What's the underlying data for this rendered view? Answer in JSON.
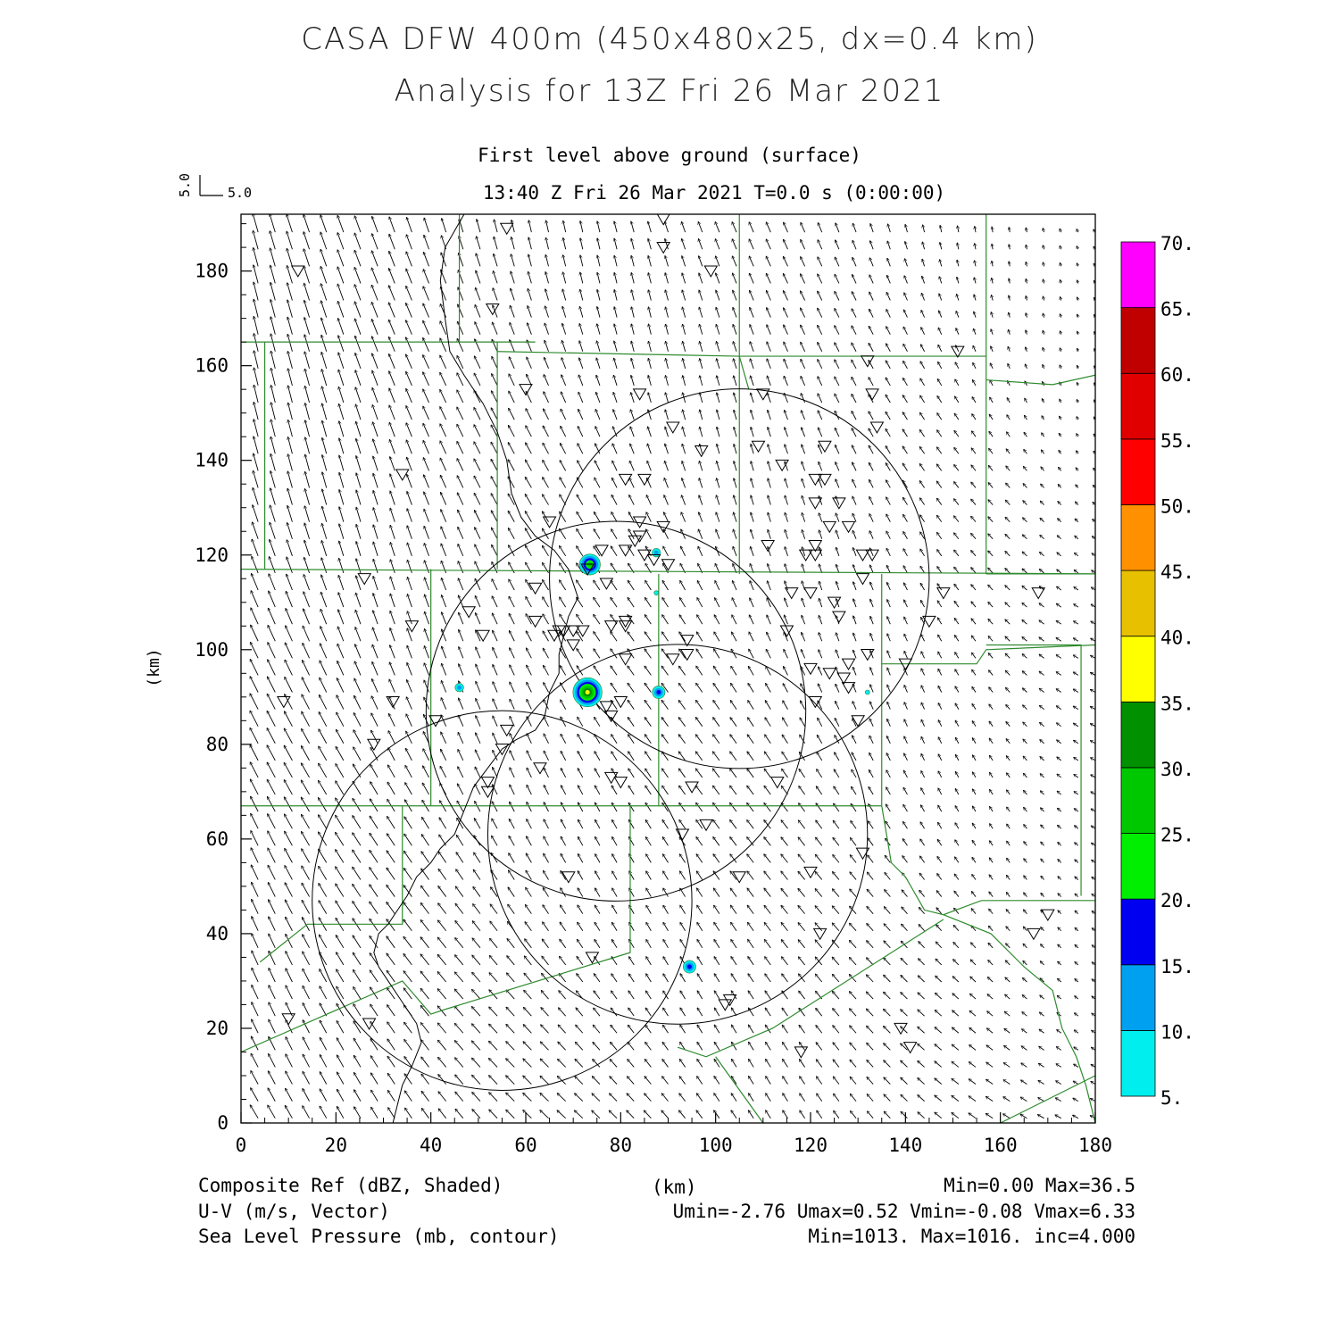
{
  "header": {
    "title_line1": "CASA DFW 400m (450x480x25, dx=0.4 km)",
    "title_line2": "Analysis for 13Z Fri 26 Mar 2021",
    "level": "First level above ground (surface)",
    "time": "13:40 Z Fri 26 Mar 2021    T=0.0 s (0:00:00)",
    "vector_key_u": "5.0",
    "vector_key_v": "5.0"
  },
  "footer": {
    "field1_label": "Composite Ref (dBZ, Shaded)",
    "field1_stats": "Min=0.00 Max=36.5",
    "field2_label": "U-V (m/s, Vector)",
    "field2_stats": "Umin=-2.76 Umax=0.52 Vmin=-0.08 Vmax=6.33",
    "field3_label": "Sea Level Pressure (mb, contour)",
    "field3_stats": "Min=1013. Max=1016. inc=4.000",
    "xunit": "(km)"
  },
  "colors": {
    "county_lines": "#2e8b2e",
    "contour_lines": "#000000"
  },
  "chart_data": {
    "type": "contour-vector-map",
    "xlabel": "(km)",
    "ylabel": "(km)",
    "xlim": [
      0,
      180
    ],
    "ylim": [
      0,
      192
    ],
    "xticks": [
      0,
      20,
      40,
      60,
      80,
      100,
      120,
      140,
      160,
      180
    ],
    "yticks": [
      0,
      20,
      40,
      60,
      80,
      100,
      120,
      140,
      160,
      180
    ],
    "colorbar": {
      "labels": [
        "5.",
        "10.",
        "15.",
        "20.",
        "25.",
        "30.",
        "35.",
        "40.",
        "45.",
        "50.",
        "55.",
        "60.",
        "65.",
        "70."
      ],
      "colors": [
        "#00eeee",
        "#00a0f0",
        "#0000f0",
        "#00ee00",
        "#00c800",
        "#009000",
        "#ffff00",
        "#e7c000",
        "#ff9000",
        "#ff0000",
        "#e00000",
        "#c00000",
        "#ff00ff"
      ]
    },
    "radar_rings_km": [
      {
        "cx": 105,
        "cy": 115,
        "r": 40
      },
      {
        "cx": 79,
        "cy": 87,
        "r": 40
      },
      {
        "cx": 92,
        "cy": 61,
        "r": 40
      },
      {
        "cx": 55,
        "cy": 47,
        "r": 40
      }
    ],
    "echoes": [
      {
        "x": 73.5,
        "y": 118,
        "dbz": 28
      },
      {
        "x": 87.5,
        "y": 120.5,
        "dbz": 14
      },
      {
        "x": 87.5,
        "y": 112,
        "dbz": 8
      },
      {
        "x": 46,
        "y": 92,
        "dbz": 13
      },
      {
        "x": 73,
        "y": 91,
        "dbz": 36.5
      },
      {
        "x": 88,
        "y": 91,
        "dbz": 17
      },
      {
        "x": 132,
        "y": 91,
        "dbz": 7
      },
      {
        "x": 94.5,
        "y": 33,
        "dbz": 17
      }
    ],
    "stations": [
      [
        56,
        189
      ],
      [
        89,
        191
      ],
      [
        89,
        185
      ],
      [
        99,
        180
      ],
      [
        12,
        180
      ],
      [
        53,
        172
      ],
      [
        151,
        163
      ],
      [
        132,
        161
      ],
      [
        60,
        155
      ],
      [
        84,
        154
      ],
      [
        110,
        154
      ],
      [
        133,
        154
      ],
      [
        91,
        147
      ],
      [
        134,
        147
      ],
      [
        97,
        142
      ],
      [
        109,
        143
      ],
      [
        123,
        143
      ],
      [
        114,
        139
      ],
      [
        34,
        137
      ],
      [
        81,
        136
      ],
      [
        85,
        136
      ],
      [
        121,
        136
      ],
      [
        123,
        136
      ],
      [
        121,
        131
      ],
      [
        126,
        131
      ],
      [
        65,
        127
      ],
      [
        84,
        127
      ],
      [
        89,
        126
      ],
      [
        84,
        124
      ],
      [
        83,
        123
      ],
      [
        124,
        126
      ],
      [
        128,
        126
      ],
      [
        121,
        122
      ],
      [
        111,
        122
      ],
      [
        76,
        121
      ],
      [
        81,
        121
      ],
      [
        85,
        120
      ],
      [
        87,
        119
      ],
      [
        90,
        118
      ],
      [
        119,
        120
      ],
      [
        121,
        120
      ],
      [
        131,
        120
      ],
      [
        133,
        120
      ],
      [
        73,
        117
      ],
      [
        26,
        115
      ],
      [
        131,
        115
      ],
      [
        77,
        114
      ],
      [
        62,
        113
      ],
      [
        116,
        112
      ],
      [
        120,
        112
      ],
      [
        125,
        110
      ],
      [
        148,
        112
      ],
      [
        168,
        112
      ],
      [
        48,
        108
      ],
      [
        126,
        107
      ],
      [
        36,
        105
      ],
      [
        62,
        106
      ],
      [
        67,
        104
      ],
      [
        68,
        104
      ],
      [
        70,
        104
      ],
      [
        66,
        103
      ],
      [
        72,
        104
      ],
      [
        78,
        105
      ],
      [
        81,
        105
      ],
      [
        81,
        106
      ],
      [
        115,
        104
      ],
      [
        145,
        106
      ],
      [
        51,
        103
      ],
      [
        94,
        102
      ],
      [
        70,
        101
      ],
      [
        94,
        99
      ],
      [
        91,
        98
      ],
      [
        132,
        99
      ],
      [
        81,
        98
      ],
      [
        140,
        97
      ],
      [
        120,
        96
      ],
      [
        124,
        95
      ],
      [
        128,
        97
      ],
      [
        128,
        92
      ],
      [
        127,
        94
      ],
      [
        9,
        89
      ],
      [
        32,
        89
      ],
      [
        80,
        89
      ],
      [
        77,
        88
      ],
      [
        78,
        86
      ],
      [
        121,
        89
      ],
      [
        41,
        85
      ],
      [
        56,
        83
      ],
      [
        130,
        85
      ],
      [
        28,
        80
      ],
      [
        55,
        79
      ],
      [
        63,
        75
      ],
      [
        78,
        73
      ],
      [
        80,
        72
      ],
      [
        52,
        72
      ],
      [
        52,
        70
      ],
      [
        95,
        71
      ],
      [
        113,
        72
      ],
      [
        98,
        63
      ],
      [
        93,
        61
      ],
      [
        131,
        57
      ],
      [
        120,
        53
      ],
      [
        69,
        52
      ],
      [
        105,
        52
      ],
      [
        122,
        40
      ],
      [
        170,
        44
      ],
      [
        167,
        40
      ],
      [
        74,
        35
      ],
      [
        102,
        25
      ],
      [
        103,
        26
      ],
      [
        10,
        22
      ],
      [
        27,
        21
      ],
      [
        139,
        20
      ],
      [
        141,
        16
      ],
      [
        118,
        15
      ]
    ],
    "vector_field": {
      "u_range": [
        -2.76,
        0.52
      ],
      "v_range": [
        -0.08,
        6.33
      ],
      "reference_vector": "5.0"
    }
  }
}
